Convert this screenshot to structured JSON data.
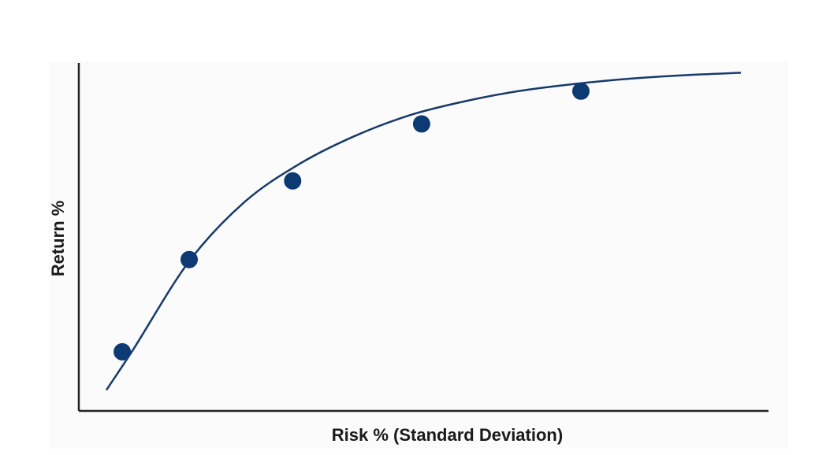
{
  "chart_data": {
    "type": "line",
    "title": "",
    "xlabel": "Risk % (Standard Deviation)",
    "ylabel": "Return %",
    "xlim": [
      0,
      100
    ],
    "ylim": [
      0,
      100
    ],
    "grid": false,
    "legend": "none",
    "ticks_shown": false,
    "colors": {
      "curve": "#173a6b",
      "points": "#0d3a73",
      "axis": "#222222"
    },
    "curve": {
      "description_units": "relative (unlabeled axes)",
      "x": [
        4,
        8,
        16,
        24,
        32,
        40,
        48,
        56,
        64,
        72,
        80,
        88,
        96
      ],
      "y": [
        6,
        18,
        43,
        60,
        71,
        79,
        85,
        89,
        92,
        94,
        95.5,
        96.5,
        97.2
      ]
    },
    "points": {
      "x": [
        6.3,
        16,
        31,
        49.7,
        72.8
      ],
      "y": [
        17,
        43.5,
        66.1,
        82.5,
        91.9
      ]
    }
  }
}
